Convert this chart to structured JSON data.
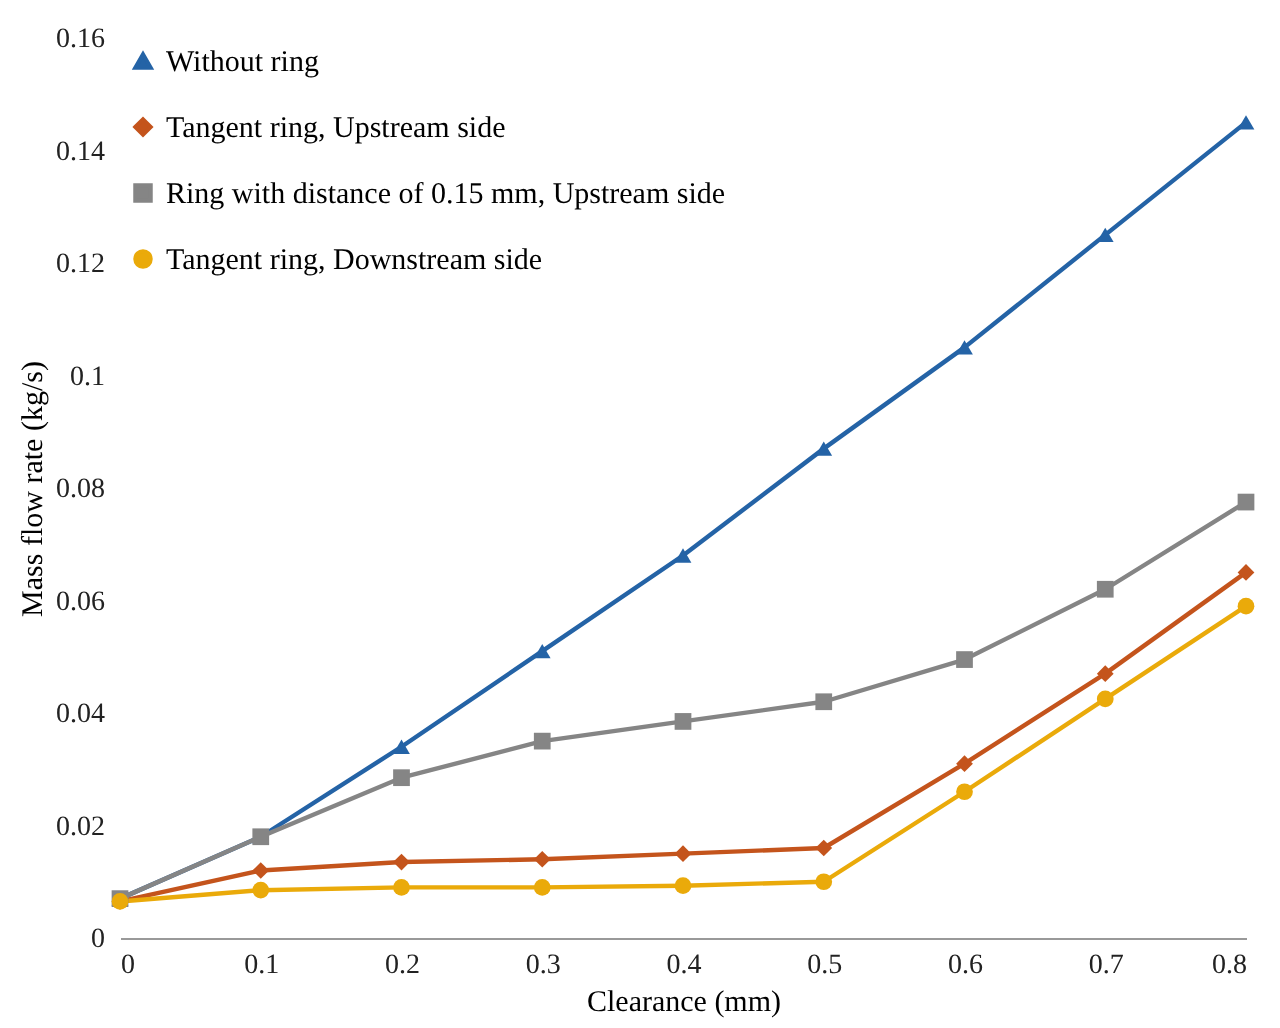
{
  "chart_data": {
    "type": "line",
    "xlabel": "Clearance (mm)",
    "ylabel": "Mass flow rate (kg/s)",
    "x": [
      0,
      0.1,
      0.2,
      0.3,
      0.4,
      0.5,
      0.6,
      0.7,
      0.8
    ],
    "xlim": [
      0,
      0.8
    ],
    "xticks": [
      0,
      0.1,
      0.2,
      0.3,
      0.4,
      0.5,
      0.6,
      0.7,
      0.8
    ],
    "ylim": [
      0,
      0.16
    ],
    "yticks": [
      0,
      0.02,
      0.04,
      0.06,
      0.08,
      0.1,
      0.12,
      0.14,
      0.16
    ],
    "grid": false,
    "legend": "top left",
    "line_style": "solid",
    "series": [
      {
        "name": "Without ring",
        "color": "#2463a6",
        "marker": "triangle",
        "values": [
          0.007,
          0.018,
          0.034,
          0.051,
          0.068,
          0.087,
          0.105,
          0.125,
          0.145
        ]
      },
      {
        "name": "Tangent ring, Upstream side",
        "color": "#c4541c",
        "marker": "diamond",
        "values": [
          0.0065,
          0.012,
          0.0135,
          0.014,
          0.015,
          0.016,
          0.031,
          0.047,
          0.065
        ]
      },
      {
        "name": "Ring with distance of 0.15 mm, Upstream side",
        "color": "#858585",
        "marker": "square",
        "values": [
          0.007,
          0.018,
          0.0285,
          0.035,
          0.0385,
          0.042,
          0.0495,
          0.062,
          0.0775
        ]
      },
      {
        "name": "Tangent ring, Downstream side",
        "color": "#eaaa0a",
        "marker": "circle",
        "values": [
          0.0065,
          0.0085,
          0.009,
          0.009,
          0.0093,
          0.01,
          0.026,
          0.0425,
          0.059
        ]
      }
    ]
  }
}
